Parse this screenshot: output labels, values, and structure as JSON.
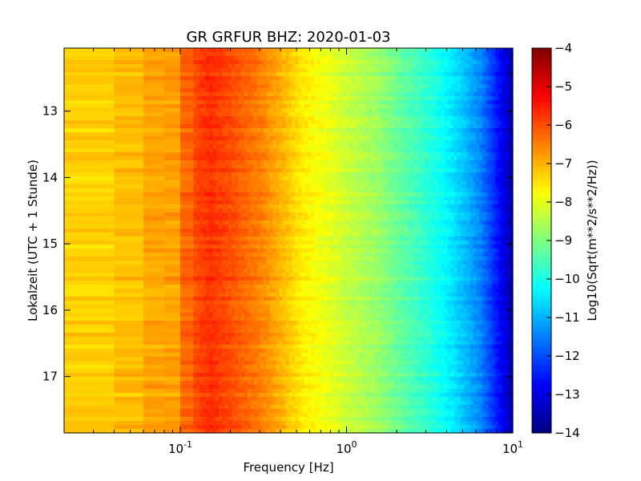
{
  "chart_data": {
    "type": "heatmap",
    "title": "GR GRFUR BHZ: 2020-01-03",
    "xlabel": "Frequency [Hz]",
    "ylabel": "Lokalzeit (UTC + 1 Stunde)",
    "x_scale": "log",
    "xlim": [
      0.02,
      10
    ],
    "x_ticks": [
      {
        "value": 0.1,
        "base": "10",
        "exp": "-1"
      },
      {
        "value": 1,
        "base": "10",
        "exp": "0"
      },
      {
        "value": 10,
        "base": "10",
        "exp": "1"
      }
    ],
    "ylim": [
      12.05,
      17.85
    ],
    "y_inverted": true,
    "y_ticks": [
      13,
      14,
      15,
      16,
      17
    ],
    "grid": false,
    "colorbar": {
      "label": "Log10(Sqrt(m**2/s**2/Hz))",
      "vmin": -14,
      "vmax": -4,
      "ticks": [
        -4,
        -5,
        -6,
        -7,
        -8,
        -9,
        -10,
        -11,
        -12,
        -13,
        -14
      ],
      "colormap": "jet"
    },
    "spectrum_profile": [
      {
        "f": 0.02,
        "v": -7.3
      },
      {
        "f": 0.04,
        "v": -7.3
      },
      {
        "f": 0.06,
        "v": -6.9
      },
      {
        "f": 0.09,
        "v": -6.8
      },
      {
        "f": 0.12,
        "v": -6.0
      },
      {
        "f": 0.15,
        "v": -5.7
      },
      {
        "f": 0.2,
        "v": -6.0
      },
      {
        "f": 0.3,
        "v": -6.5
      },
      {
        "f": 0.4,
        "v": -7.0
      },
      {
        "f": 0.55,
        "v": -7.6
      },
      {
        "f": 0.8,
        "v": -8.0
      },
      {
        "f": 1.0,
        "v": -8.3
      },
      {
        "f": 1.5,
        "v": -8.7
      },
      {
        "f": 2.0,
        "v": -9.2
      },
      {
        "f": 3.0,
        "v": -9.8
      },
      {
        "f": 4.0,
        "v": -10.3
      },
      {
        "f": 5.0,
        "v": -10.8
      },
      {
        "f": 6.5,
        "v": -11.5
      },
      {
        "f": 8.0,
        "v": -12.5
      },
      {
        "f": 10.0,
        "v": -13.6
      }
    ]
  }
}
